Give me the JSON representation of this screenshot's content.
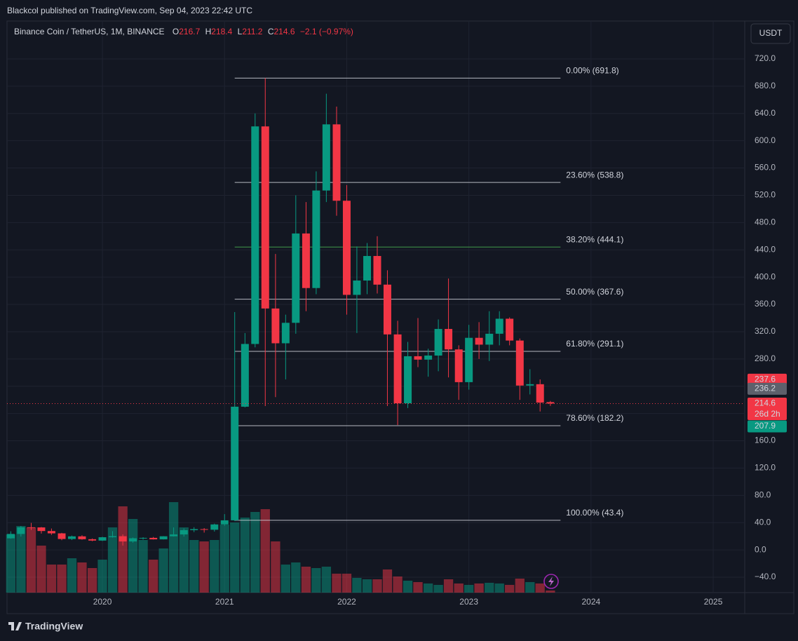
{
  "header": {
    "published": "Blackcol published on TradingView.com, Sep 04, 2023 22:42 UTC",
    "symbol": "Binance Coin / TetherUS, 1M, BINANCE",
    "ohlc_letters": [
      "O",
      "H",
      "L",
      "C"
    ],
    "change": "−2.1 (−0.97%)",
    "currency": "USDT",
    "brand": "TradingView"
  },
  "chart_data": {
    "type": "candlestick",
    "x": [
      2019.25,
      2019.333,
      2019.417,
      2019.5,
      2019.583,
      2019.667,
      2019.75,
      2019.833,
      2019.917,
      2020.0,
      2020.083,
      2020.167,
      2020.25,
      2020.333,
      2020.417,
      2020.5,
      2020.583,
      2020.667,
      2020.75,
      2020.833,
      2020.917,
      2021.0,
      2021.083,
      2021.167,
      2021.25,
      2021.333,
      2021.417,
      2021.5,
      2021.583,
      2021.667,
      2021.75,
      2021.833,
      2021.917,
      2022.0,
      2022.083,
      2022.167,
      2022.25,
      2022.333,
      2022.417,
      2022.5,
      2022.583,
      2022.667,
      2022.75,
      2022.833,
      2022.917,
      2023.0,
      2023.083,
      2023.167,
      2023.25,
      2023.333,
      2023.417,
      2023.5,
      2023.583,
      2023.667
    ],
    "open": [
      17.0,
      23.4,
      33.2,
      33.0,
      27.7,
      24.3,
      16.0,
      19.9,
      15.7,
      13.7,
      18.6,
      20.1,
      12.4,
      17.1,
      17.7,
      15.5,
      20.0,
      22.7,
      29.0,
      30.5,
      29.6,
      37.4,
      43.4,
      210,
      302,
      621,
      354,
      303,
      333,
      464,
      384,
      527,
      624,
      512,
      374,
      395,
      431,
      389,
      316,
      215,
      284,
      279,
      285,
      324,
      294,
      246,
      311,
      301,
      317,
      339,
      307,
      241,
      243,
      216.7
    ],
    "high": [
      27.3,
      35.0,
      39.6,
      33.6,
      31.4,
      25.0,
      21.0,
      21.5,
      16.8,
      19.2,
      27.5,
      22.8,
      18.2,
      18.6,
      19.0,
      20.2,
      33.0,
      31.5,
      33.3,
      32.0,
      38.5,
      52.5,
      348.7,
      318,
      640,
      691.8,
      434,
      345,
      520,
      510,
      555,
      669,
      650,
      535,
      445,
      450,
      460,
      410,
      336,
      305,
      340,
      295,
      338,
      398,
      300,
      330,
      334,
      350,
      350,
      341,
      310,
      265,
      250,
      218.4
    ],
    "low": [
      16.4,
      19.6,
      29.2,
      24.0,
      22.1,
      14.3,
      14.5,
      15.0,
      12.8,
      13.1,
      18.1,
      6.4,
      10.6,
      15.1,
      15.2,
      15.3,
      19.6,
      19.6,
      26.1,
      25.4,
      26.9,
      35.5,
      42.3,
      209,
      297,
      211,
      224,
      250,
      317,
      350,
      375,
      510,
      490,
      345,
      318,
      375,
      376,
      211,
      183,
      208,
      268,
      254,
      262,
      253,
      220,
      235,
      280,
      277,
      300,
      300,
      220,
      228,
      203,
      211.2
    ],
    "close": [
      23.4,
      33.2,
      33.0,
      27.7,
      24.3,
      16.0,
      19.9,
      15.7,
      13.7,
      18.6,
      20.1,
      12.4,
      17.1,
      17.7,
      15.5,
      20.0,
      22.7,
      29.0,
      30.5,
      29.6,
      37.4,
      43.4,
      210,
      302,
      621,
      354,
      303,
      333,
      464,
      384,
      527,
      624,
      512,
      374,
      395,
      431,
      389,
      316,
      215,
      284,
      279,
      285,
      324,
      294,
      246,
      311,
      301,
      317,
      339,
      307,
      241,
      243,
      216,
      214.6
    ],
    "volume": [
      83,
      95,
      93,
      67,
      40,
      40,
      49,
      43,
      35,
      47,
      93,
      123,
      105,
      75,
      47,
      63,
      129,
      93,
      75,
      73,
      75,
      97,
      100,
      107,
      115,
      119,
      73,
      40,
      43,
      37,
      35,
      37,
      27,
      27,
      21,
      19,
      19,
      33,
      23,
      17,
      15,
      13,
      11,
      19,
      13,
      11,
      13,
      14,
      13,
      11,
      20,
      15,
      13,
      3
    ],
    "up_color": "#089981",
    "down_color": "#f23645",
    "xlim": [
      2019.219,
      2025.258
    ],
    "xticks": [
      2020,
      2021,
      2022,
      2023,
      2024,
      2025
    ],
    "ylim": [
      -62.6,
      775.5
    ],
    "yticks": [
      {
        "value": -40,
        "label": "−40.0"
      },
      {
        "value": 0,
        "label": "0.0"
      },
      {
        "value": 40,
        "label": "40.0"
      },
      {
        "value": 80,
        "label": "80.0"
      },
      {
        "value": 120,
        "label": "120.0"
      },
      {
        "value": 160,
        "label": "160.0"
      },
      {
        "value": 200,
        "label": "200.0"
      },
      {
        "value": 240,
        "label": "240.0"
      },
      {
        "value": 280,
        "label": "280.0"
      },
      {
        "value": 320,
        "label": "320.0"
      },
      {
        "value": 360,
        "label": "360.0"
      },
      {
        "value": 400,
        "label": "400.0"
      },
      {
        "value": 440,
        "label": "440.0"
      },
      {
        "value": 480,
        "label": "480.0"
      },
      {
        "value": 520,
        "label": "520.0"
      },
      {
        "value": 560,
        "label": "560.0"
      },
      {
        "value": 600,
        "label": "600.0"
      },
      {
        "value": 640,
        "label": "640.0"
      },
      {
        "value": 680,
        "label": "680.0"
      },
      {
        "value": 720,
        "label": "720.0"
      }
    ],
    "grid": true,
    "fib_range": [
      2021.083,
      2023.75
    ],
    "fib_levels": [
      {
        "value": 691.8,
        "label": "0.00% (691.8)",
        "color": "#d1d4dc"
      },
      {
        "value": 538.8,
        "label": "23.60% (538.8)",
        "color": "#d1d4dc"
      },
      {
        "value": 444.1,
        "label": "38.20% (444.1)",
        "color": "#4caf50"
      },
      {
        "value": 367.6,
        "label": "50.00% (367.6)",
        "color": "#d1d4dc"
      },
      {
        "value": 291.1,
        "label": "61.80% (291.1)",
        "color": "#d1d4dc"
      },
      {
        "value": 182.2,
        "label": "78.60% (182.2)",
        "color": "#d1d4dc"
      },
      {
        "value": 43.4,
        "label": "100.00% (43.4)",
        "color": "#d1d4dc"
      }
    ],
    "price_labels": [
      {
        "value": 237.6,
        "color": "#f23645"
      },
      {
        "value": 236.2,
        "color": "#5d606b"
      },
      {
        "value": 214.6,
        "color": "#f23645",
        "sub": "26d 2h"
      },
      {
        "value": 207.9,
        "color": "#089981"
      }
    ]
  }
}
